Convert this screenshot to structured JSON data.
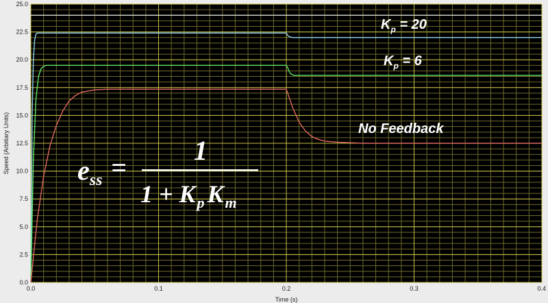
{
  "chart_data": {
    "type": "line",
    "title": "",
    "xlabel": "Time (s)",
    "ylabel": "Speed (Arbitiary Units)",
    "xlim": [
      0.0,
      0.4
    ],
    "ylim": [
      0.0,
      25.0
    ],
    "xticks": [
      0.0,
      0.1,
      0.2,
      0.3,
      0.4
    ],
    "xtick_labels": [
      "0.0",
      "0.1",
      "0.2",
      "0.3",
      "0.4"
    ],
    "yticks": [
      0.0,
      2.5,
      5.0,
      7.5,
      10.0,
      12.5,
      15.0,
      17.5,
      20.0,
      22.5,
      25.0
    ],
    "ytick_labels": [
      "0.0",
      "2.5",
      "5.0",
      "7.5",
      "10.0",
      "12.5",
      "15.0",
      "17.5",
      "20.0",
      "22.5",
      "25.0"
    ],
    "grid": true,
    "reference_line": {
      "y": 24.0,
      "color": "#e8e8e8"
    },
    "series": [
      {
        "label": "Kp = 20",
        "label_main": "K",
        "label_sub": "p",
        "label_rest": " = 20",
        "color": "#8fd3f0",
        "x": [
          0.0,
          0.001,
          0.002,
          0.003,
          0.004,
          0.005,
          0.2,
          0.201,
          0.202,
          0.203,
          0.205,
          0.21,
          0.4
        ],
        "y": [
          0.0,
          15.0,
          20.0,
          21.8,
          22.3,
          22.4,
          22.4,
          22.2,
          22.1,
          22.05,
          22.0,
          22.0,
          22.0
        ]
      },
      {
        "label": "Kp = 6",
        "label_main": "K",
        "label_sub": "p",
        "label_rest": " = 6",
        "color": "#5ee66a",
        "x": [
          0.0,
          0.002,
          0.004,
          0.006,
          0.008,
          0.01,
          0.012,
          0.2,
          0.201,
          0.202,
          0.203,
          0.204,
          0.206,
          0.21,
          0.4
        ],
        "y": [
          0.0,
          11.0,
          16.5,
          18.5,
          19.2,
          19.4,
          19.5,
          19.5,
          19.3,
          19.0,
          18.8,
          18.7,
          18.6,
          18.6,
          18.6
        ],
        "note": ""
      },
      {
        "label": "No Feedback",
        "color": "#e06860",
        "x": [
          0.0,
          0.005,
          0.01,
          0.015,
          0.02,
          0.025,
          0.03,
          0.035,
          0.04,
          0.045,
          0.05,
          0.06,
          0.2,
          0.205,
          0.21,
          0.215,
          0.22,
          0.225,
          0.23,
          0.24,
          0.25,
          0.26,
          0.4
        ],
        "y": [
          0.0,
          5.6,
          9.5,
          12.3,
          14.1,
          15.4,
          16.3,
          16.8,
          17.1,
          17.2,
          17.3,
          17.35,
          17.35,
          15.7,
          14.4,
          13.6,
          13.1,
          12.85,
          12.7,
          12.6,
          12.55,
          12.5,
          12.5
        ]
      }
    ]
  },
  "formula": {
    "lhs_main": "e",
    "lhs_sub": "ss",
    "equals": "=",
    "numerator": "1",
    "denominator_prefix": "1 + K",
    "denominator_sub_p": "p",
    "denominator_k": "K",
    "denominator_sub_m": "m"
  },
  "colors": {
    "plot_bg": "#000000",
    "grid_major": "#c9c24a",
    "grid_minor": "#6f6a2a",
    "frame_bg": "#ececec"
  }
}
